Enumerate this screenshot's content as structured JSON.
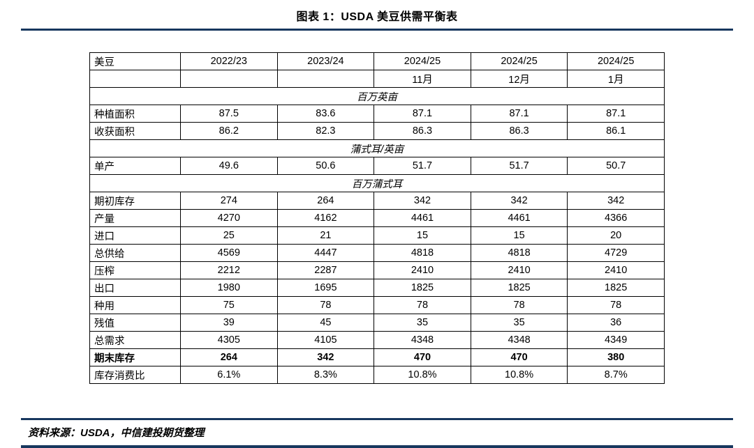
{
  "page": {
    "accent_color": "#17375E"
  },
  "chart_data": {
    "type": "table",
    "title": "图表 1：USDA 美豆供需平衡表",
    "source": "资料来源：USDA，中信建投期货整理",
    "columns": [
      "美豆",
      "2022/23",
      "2023/24",
      "2024/25",
      "2024/25",
      "2024/25"
    ],
    "subcolumns": [
      "",
      "",
      "",
      "11月",
      "12月",
      "1月"
    ],
    "rows": [
      {
        "kind": "section",
        "label": "百万英亩"
      },
      {
        "kind": "data",
        "label": "种植面积",
        "values": [
          "87.5",
          "83.6",
          "87.1",
          "87.1",
          "87.1"
        ]
      },
      {
        "kind": "data",
        "label": "收获面积",
        "values": [
          "86.2",
          "82.3",
          "86.3",
          "86.3",
          "86.1"
        ]
      },
      {
        "kind": "section",
        "label": "蒲式耳/英亩"
      },
      {
        "kind": "data",
        "label": "单产",
        "values": [
          "49.6",
          "50.6",
          "51.7",
          "51.7",
          "50.7"
        ]
      },
      {
        "kind": "section",
        "label": "百万蒲式耳"
      },
      {
        "kind": "data",
        "label": "期初库存",
        "values": [
          "274",
          "264",
          "342",
          "342",
          "342"
        ]
      },
      {
        "kind": "data",
        "label": "产量",
        "values": [
          "4270",
          "4162",
          "4461",
          "4461",
          "4366"
        ]
      },
      {
        "kind": "data",
        "label": "进口",
        "values": [
          "25",
          "21",
          "15",
          "15",
          "20"
        ]
      },
      {
        "kind": "data",
        "label": "总供给",
        "indent": true,
        "values": [
          "4569",
          "4447",
          "4818",
          "4818",
          "4729"
        ]
      },
      {
        "kind": "data",
        "label": "压榨",
        "values": [
          "2212",
          "2287",
          "2410",
          "2410",
          "2410"
        ]
      },
      {
        "kind": "data",
        "label": "出口",
        "values": [
          "1980",
          "1695",
          "1825",
          "1825",
          "1825"
        ]
      },
      {
        "kind": "data",
        "label": "种用",
        "values": [
          "75",
          "78",
          "78",
          "78",
          "78"
        ]
      },
      {
        "kind": "data",
        "label": "残值",
        "values": [
          "39",
          "45",
          "35",
          "35",
          "36"
        ]
      },
      {
        "kind": "data",
        "label": "总需求",
        "indent": true,
        "values": [
          "4305",
          "4105",
          "4348",
          "4348",
          "4349"
        ]
      },
      {
        "kind": "data",
        "label": "期末库存",
        "bold": true,
        "values": [
          "264",
          "342",
          "470",
          "470",
          "380"
        ]
      },
      {
        "kind": "data",
        "label": "库存消费比",
        "values": [
          "6.1%",
          "8.3%",
          "10.8%",
          "10.8%",
          "8.7%"
        ]
      }
    ]
  }
}
